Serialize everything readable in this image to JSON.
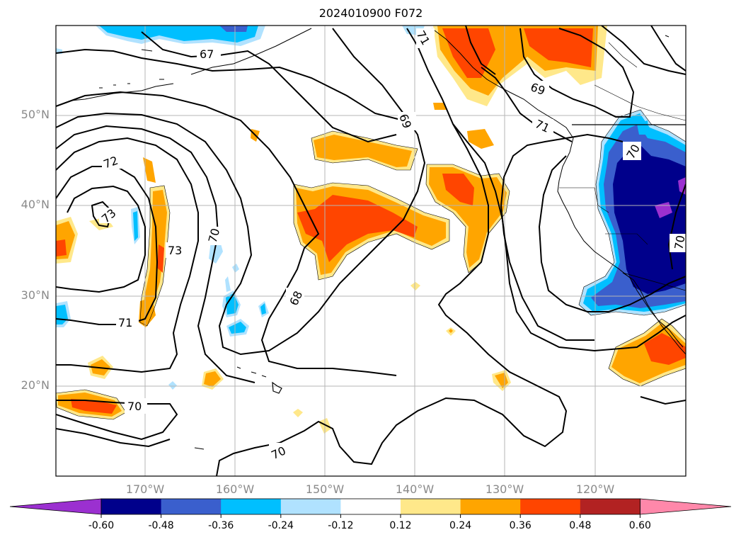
{
  "title": "2024010900 F072",
  "lat_labels": [
    "50°N",
    "40°N",
    "30°N",
    "20°N"
  ],
  "lon_labels": [
    "170°W",
    "160°W",
    "150°W",
    "140°W",
    "130°W",
    "120°W"
  ],
  "contour_labels": [
    "67",
    "69",
    "69",
    "71",
    "72",
    "73",
    "73",
    "70",
    "71",
    "70",
    "68",
    "70",
    "70",
    "71",
    "70"
  ],
  "colorbar": {
    "ticks": [
      "-0.60",
      "-0.48",
      "-0.36",
      "-0.24",
      "-0.12",
      "0.12",
      "0.24",
      "0.36",
      "0.48",
      "0.60"
    ],
    "colors": [
      "#9b30d0",
      "#00008b",
      "#3a5fcd",
      "#00bfff",
      "#b0e2ff",
      "#ffffff",
      "#ffe88a",
      "#ffa500",
      "#ff4500",
      "#b22222",
      "#ff88aa"
    ]
  },
  "fill_colors": {
    "pos1": "#ffe88a",
    "pos2": "#ffa500",
    "pos3": "#ff4500",
    "neg1": "#b0e2ff",
    "neg2": "#00bfff",
    "neg3": "#3a5fcd",
    "neg4": "#00008b",
    "neg5": "#9b30d0"
  }
}
